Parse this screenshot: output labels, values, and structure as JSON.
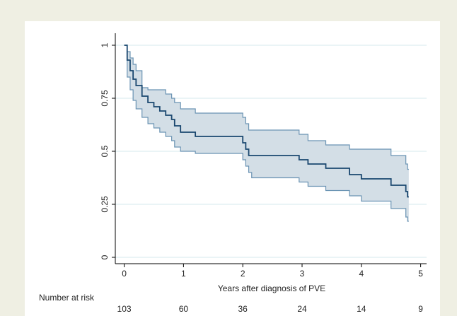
{
  "chart_data": {
    "type": "survival",
    "xlabel": "Years after diagnosis of PVE",
    "x": [
      0,
      0.05,
      0.1,
      0.15,
      0.2,
      0.3,
      0.4,
      0.5,
      0.6,
      0.7,
      0.8,
      0.85,
      0.95,
      1.2,
      2.0,
      2.05,
      2.1,
      2.15,
      2.95,
      3.1,
      3.4,
      3.8,
      4.0,
      4.5,
      4.75,
      4.78,
      4.8
    ],
    "series": [
      {
        "color": "#1a476f",
        "values": [
          1,
          0.93,
          0.88,
          0.84,
          0.81,
          0.76,
          0.73,
          0.71,
          0.69,
          0.67,
          0.65,
          0.62,
          0.59,
          0.57,
          0.54,
          0.51,
          0.48,
          0.48,
          0.46,
          0.44,
          0.42,
          0.39,
          0.37,
          0.34,
          0.31,
          0.285,
          0.285
        ]
      },
      {
        "color": "#6a93b3",
        "values": [
          1,
          0.85,
          0.79,
          0.74,
          0.7,
          0.66,
          0.63,
          0.61,
          0.59,
          0.57,
          0.55,
          0.52,
          0.5,
          0.49,
          0.46,
          0.43,
          0.4,
          0.375,
          0.355,
          0.335,
          0.315,
          0.29,
          0.265,
          0.23,
          0.19,
          0.17,
          0.17
        ]
      },
      {
        "color": "#6a93b3",
        "values": [
          1,
          0.97,
          0.94,
          0.91,
          0.88,
          0.8,
          0.79,
          0.79,
          0.79,
          0.77,
          0.75,
          0.73,
          0.7,
          0.68,
          0.66,
          0.63,
          0.6,
          0.6,
          0.58,
          0.55,
          0.53,
          0.51,
          0.51,
          0.48,
          0.44,
          0.415,
          0.415
        ]
      }
    ],
    "band_color": "#d3dee6",
    "xlim": [
      -0.15,
      5.1
    ],
    "xticks": [
      0,
      1,
      2,
      3,
      4,
      5
    ],
    "ylim": [
      -0.03,
      1.04
    ],
    "yticks": [
      0,
      0.25,
      0.5,
      0.75,
      1
    ],
    "grid": true,
    "risk_table": {
      "title": "Number at risk",
      "values": [
        103,
        60,
        36,
        24,
        14,
        9
      ]
    }
  }
}
